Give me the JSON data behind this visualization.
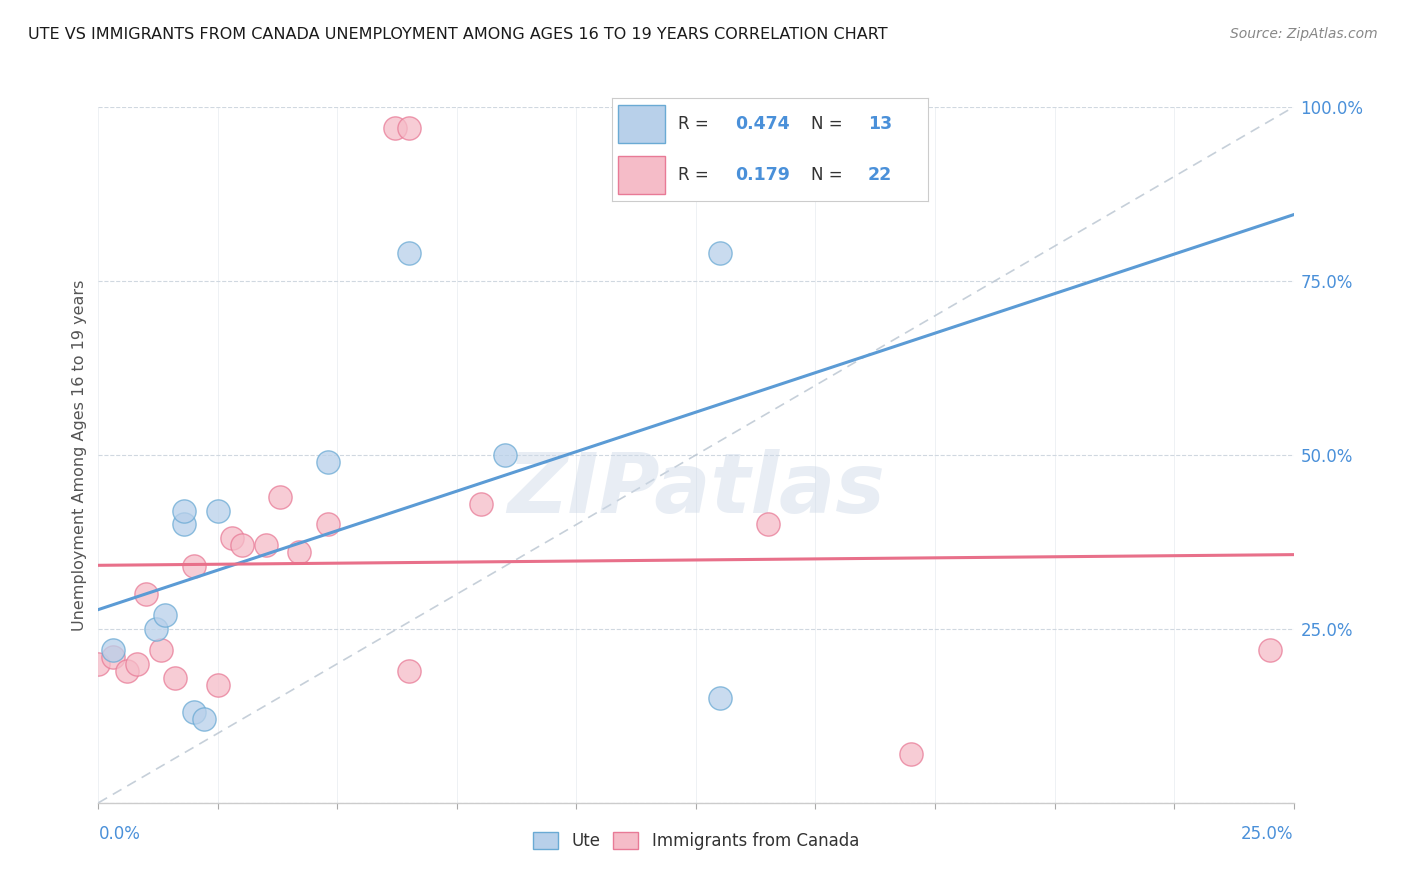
{
  "title": "UTE VS IMMIGRANTS FROM CANADA UNEMPLOYMENT AMONG AGES 16 TO 19 YEARS CORRELATION CHART",
  "source": "Source: ZipAtlas.com",
  "ylabel": "Unemployment Among Ages 16 to 19 years",
  "legend_label1": "Ute",
  "legend_label2": "Immigrants from Canada",
  "R1": "0.474",
  "N1": "13",
  "R2": "0.179",
  "N2": "22",
  "color_blue_fill": "#b8d0ea",
  "color_blue_edge": "#6aaad4",
  "color_pink_fill": "#f5bcc8",
  "color_pink_edge": "#e87a96",
  "color_blue_line": "#5b9bd5",
  "color_pink_line": "#e8708a",
  "color_text_blue": "#4a90d9",
  "color_text_dark": "#333333",
  "color_grid": "#d0d8e0",
  "color_diag": "#b8c4d0",
  "bg_color": "#ffffff",
  "watermark": "ZIPatlas",
  "xlim": [
    0.0,
    0.25
  ],
  "ylim": [
    0.0,
    1.0
  ],
  "ute_x": [
    0.003,
    0.012,
    0.014,
    0.018,
    0.018,
    0.02,
    0.022,
    0.025,
    0.048,
    0.065,
    0.085,
    0.13,
    0.13
  ],
  "ute_y": [
    0.22,
    0.25,
    0.27,
    0.4,
    0.42,
    0.13,
    0.12,
    0.42,
    0.49,
    0.79,
    0.5,
    0.79,
    0.15
  ],
  "canada_x": [
    0.0,
    0.003,
    0.006,
    0.008,
    0.01,
    0.013,
    0.016,
    0.02,
    0.025,
    0.028,
    0.03,
    0.035,
    0.038,
    0.042,
    0.048,
    0.062,
    0.065,
    0.065,
    0.08,
    0.14,
    0.17,
    0.245
  ],
  "canada_y": [
    0.2,
    0.21,
    0.19,
    0.2,
    0.3,
    0.22,
    0.18,
    0.34,
    0.17,
    0.38,
    0.37,
    0.37,
    0.44,
    0.36,
    0.4,
    0.97,
    0.97,
    0.19,
    0.43,
    0.4,
    0.07,
    0.22
  ],
  "ytick_vals": [
    0.0,
    0.25,
    0.5,
    0.75,
    1.0
  ],
  "ytick_labels": [
    "",
    "25.0%",
    "50.0%",
    "75.0%",
    "100.0%"
  ]
}
